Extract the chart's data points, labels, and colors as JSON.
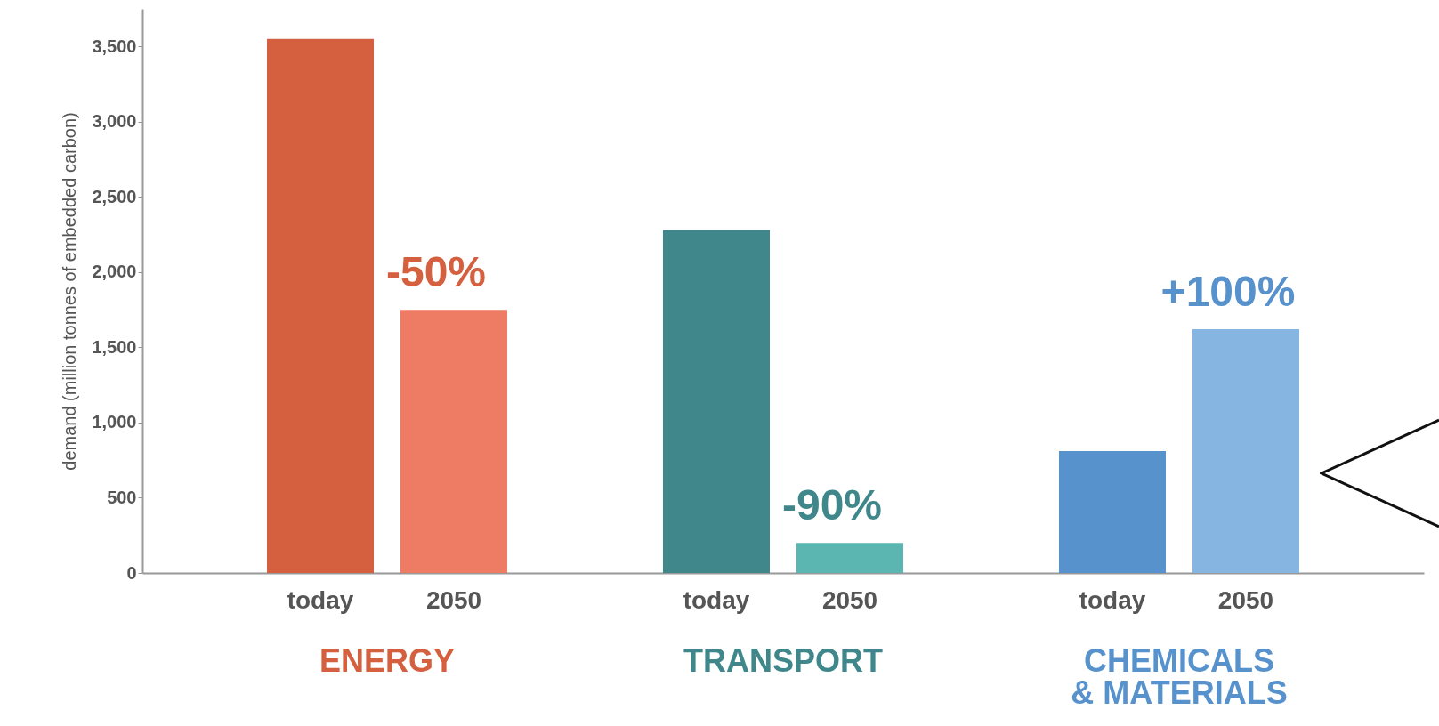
{
  "chart_data": {
    "type": "bar",
    "ylabel": "demand  (million tonnes of embedded carbon)",
    "categories": [
      "ENERGY",
      "TRANSPORT",
      "CHEMICALS & MATERIALS"
    ],
    "series": [
      {
        "name": "today",
        "colors": [
          "#d4603f",
          "#3f878a",
          "#5792cc"
        ],
        "values": [
          3550,
          2280,
          810
        ]
      },
      {
        "name": "2050",
        "colors": [
          "#ee7b63",
          "#5bb5b0",
          "#85b5e0"
        ],
        "values": [
          1750,
          200,
          1620
        ]
      }
    ],
    "ylim": [
      0,
      3750
    ],
    "yticks": [
      {
        "value": 0,
        "label": "0"
      },
      {
        "value": 500,
        "label": "500"
      },
      {
        "value": 1000,
        "label": "1,000"
      },
      {
        "value": 1500,
        "label": "1,500"
      },
      {
        "value": 2000,
        "label": "2,000"
      },
      {
        "value": 2500,
        "label": "2,500"
      },
      {
        "value": 3000,
        "label": "3,000"
      },
      {
        "value": 3500,
        "label": "3,500"
      }
    ],
    "annotations": [
      "-50%",
      "-90%",
      "+100%"
    ],
    "grid": false
  }
}
